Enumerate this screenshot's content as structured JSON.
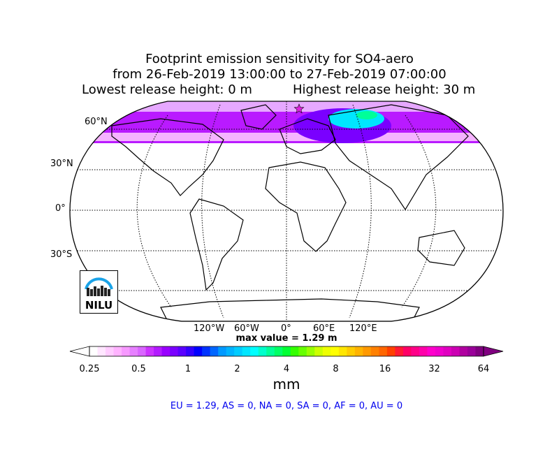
{
  "title": {
    "line1": "Footprint emission sensitivity for SO4-aero",
    "line2": "from 26-Feb-2019 13:00:00 to 27-Feb-2019 07:00:00",
    "line3_left": "Lowest release height: 0 m",
    "line3_right": "Highest release height: 30 m"
  },
  "map": {
    "projection": "robinson",
    "lat_labels": [
      "60°N",
      "30°N",
      "0°",
      "30°S"
    ],
    "lon_labels": [
      "120°W",
      "60°W",
      "0°",
      "60°E",
      "120°E"
    ],
    "release_marker": "star-icon",
    "max_value_text": "max value = 1.29 m",
    "logo_text": "NILU",
    "colors": {
      "land_outline": "#000000",
      "graticule": "#000000",
      "release_star": "#e020e0"
    }
  },
  "colorbar": {
    "tick_labels": [
      "0.25",
      "0.5",
      "1",
      "2",
      "4",
      "8",
      "16",
      "32",
      "64"
    ],
    "unit": "mm",
    "colors": [
      "#ffffff",
      "#ffe6ff",
      "#ffccff",
      "#ffb3ff",
      "#f799ff",
      "#e680ff",
      "#d966ff",
      "#cc33ff",
      "#b31aff",
      "#9900ff",
      "#7a00ff",
      "#5a00ff",
      "#3300ff",
      "#0000ff",
      "#0033ff",
      "#0066ff",
      "#0099ff",
      "#00b3ff",
      "#00ccff",
      "#00e6ff",
      "#00ffff",
      "#00ffcc",
      "#00ff99",
      "#00ff66",
      "#00ff33",
      "#33ff00",
      "#66ff00",
      "#99ff00",
      "#ccff00",
      "#eeff00",
      "#ffff00",
      "#ffe600",
      "#ffcc00",
      "#ffb300",
      "#ff9900",
      "#ff8000",
      "#ff6600",
      "#ff4000",
      "#ff1a33",
      "#ff0066",
      "#ff0088",
      "#ff00aa",
      "#ff00cc",
      "#f000cc",
      "#e000c0",
      "#cc00b3",
      "#b000a0",
      "#990099",
      "#800080"
    ]
  },
  "regions_text": "EU = 1.29,  AS = 0,  NA = 0,  SA = 0,  AF = 0,  AU = 0"
}
